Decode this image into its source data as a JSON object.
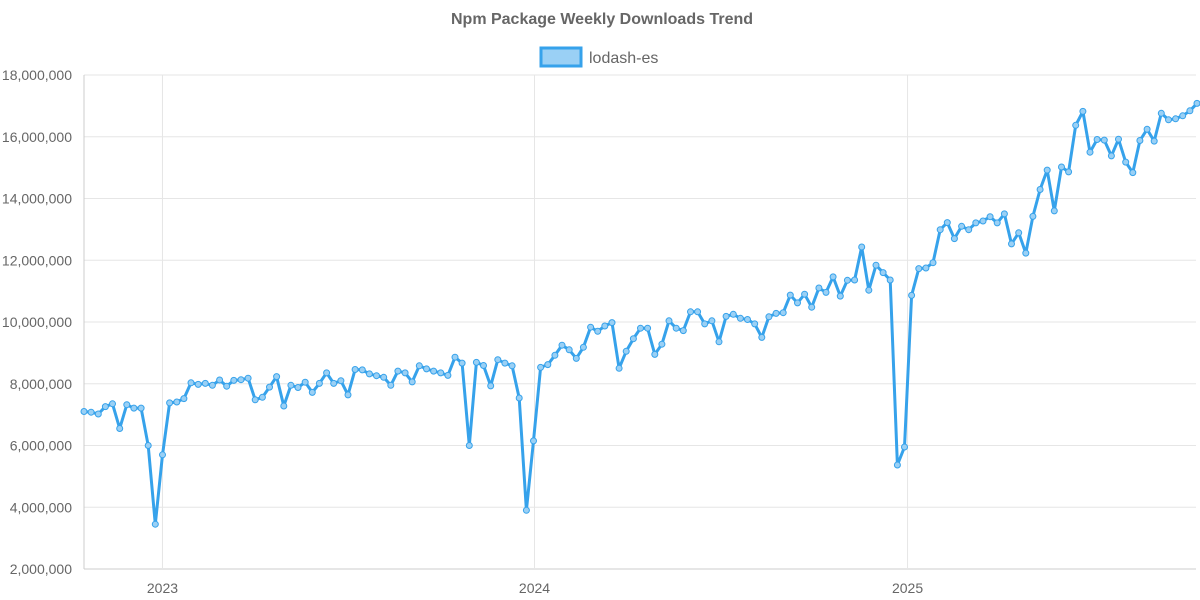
{
  "chart_data": {
    "type": "line",
    "title": "Npm Package Weekly Downloads Trend",
    "xlabel": "",
    "ylabel": "",
    "ylim": [
      2000000,
      18000000
    ],
    "yticks": [
      2000000,
      4000000,
      6000000,
      8000000,
      10000000,
      12000000,
      14000000,
      16000000,
      18000000
    ],
    "ytick_labels": [
      "2,000,000",
      "4,000,000",
      "6,000,000",
      "8,000,000",
      "10,000,000",
      "12,000,000",
      "14,000,000",
      "16,000,000",
      "18,000,000"
    ],
    "xlim": [
      "2022-10-16",
      "2025-10-11"
    ],
    "xticks": [
      "2023-01-01",
      "2024-01-01",
      "2025-01-01"
    ],
    "xtick_labels": [
      "2023",
      "2024",
      "2025"
    ],
    "grid": true,
    "legend": "top-center",
    "series": [
      {
        "name": "lodash-es",
        "color": "#36a2eb",
        "fill": "#9ad0f5",
        "x_start": "2022-10-16",
        "interval_days": 7,
        "values": [
          7100000,
          7080000,
          7020000,
          7260000,
          7350000,
          6550000,
          7320000,
          7210000,
          7210000,
          6000000,
          3450000,
          5700000,
          7380000,
          7410000,
          7520000,
          8030000,
          7980000,
          8010000,
          7950000,
          8120000,
          7920000,
          8110000,
          8130000,
          8180000,
          7480000,
          7560000,
          7890000,
          8230000,
          7280000,
          7950000,
          7880000,
          8050000,
          7720000,
          8010000,
          8350000,
          8010000,
          8100000,
          7640000,
          8460000,
          8450000,
          8320000,
          8260000,
          8210000,
          7950000,
          8410000,
          8350000,
          8060000,
          8580000,
          8480000,
          8410000,
          8350000,
          8270000,
          8860000,
          8670000,
          6000000,
          8690000,
          8590000,
          7930000,
          8780000,
          8670000,
          8580000,
          7540000,
          3900000,
          6150000,
          8530000,
          8620000,
          8920000,
          9250000,
          9100000,
          8820000,
          9180000,
          9830000,
          9700000,
          9870000,
          9980000,
          8500000,
          9050000,
          9460000,
          9800000,
          9800000,
          8950000,
          9280000,
          10040000,
          9800000,
          9720000,
          10330000,
          10330000,
          9940000,
          10040000,
          9360000,
          10180000,
          10250000,
          10120000,
          10080000,
          9940000,
          9500000,
          10170000,
          10280000,
          10300000,
          10870000,
          10620000,
          10900000,
          10480000,
          11100000,
          10960000,
          11460000,
          10840000,
          11350000,
          11360000,
          12430000,
          11030000,
          11840000,
          11600000,
          11360000,
          5370000,
          5950000,
          10860000,
          11730000,
          11750000,
          11920000,
          12990000,
          13220000,
          12700000,
          13100000,
          12990000,
          13210000,
          13270000,
          13410000,
          13210000,
          13500000,
          12530000,
          12890000,
          12230000,
          13420000,
          14290000,
          14920000,
          13600000,
          15020000,
          14860000,
          16370000,
          16820000,
          15500000,
          15910000,
          15890000,
          15380000,
          15920000,
          15180000,
          14840000,
          15880000,
          16240000,
          15860000,
          16760000,
          16550000,
          16580000,
          16680000,
          16840000,
          17080000
        ]
      }
    ]
  }
}
